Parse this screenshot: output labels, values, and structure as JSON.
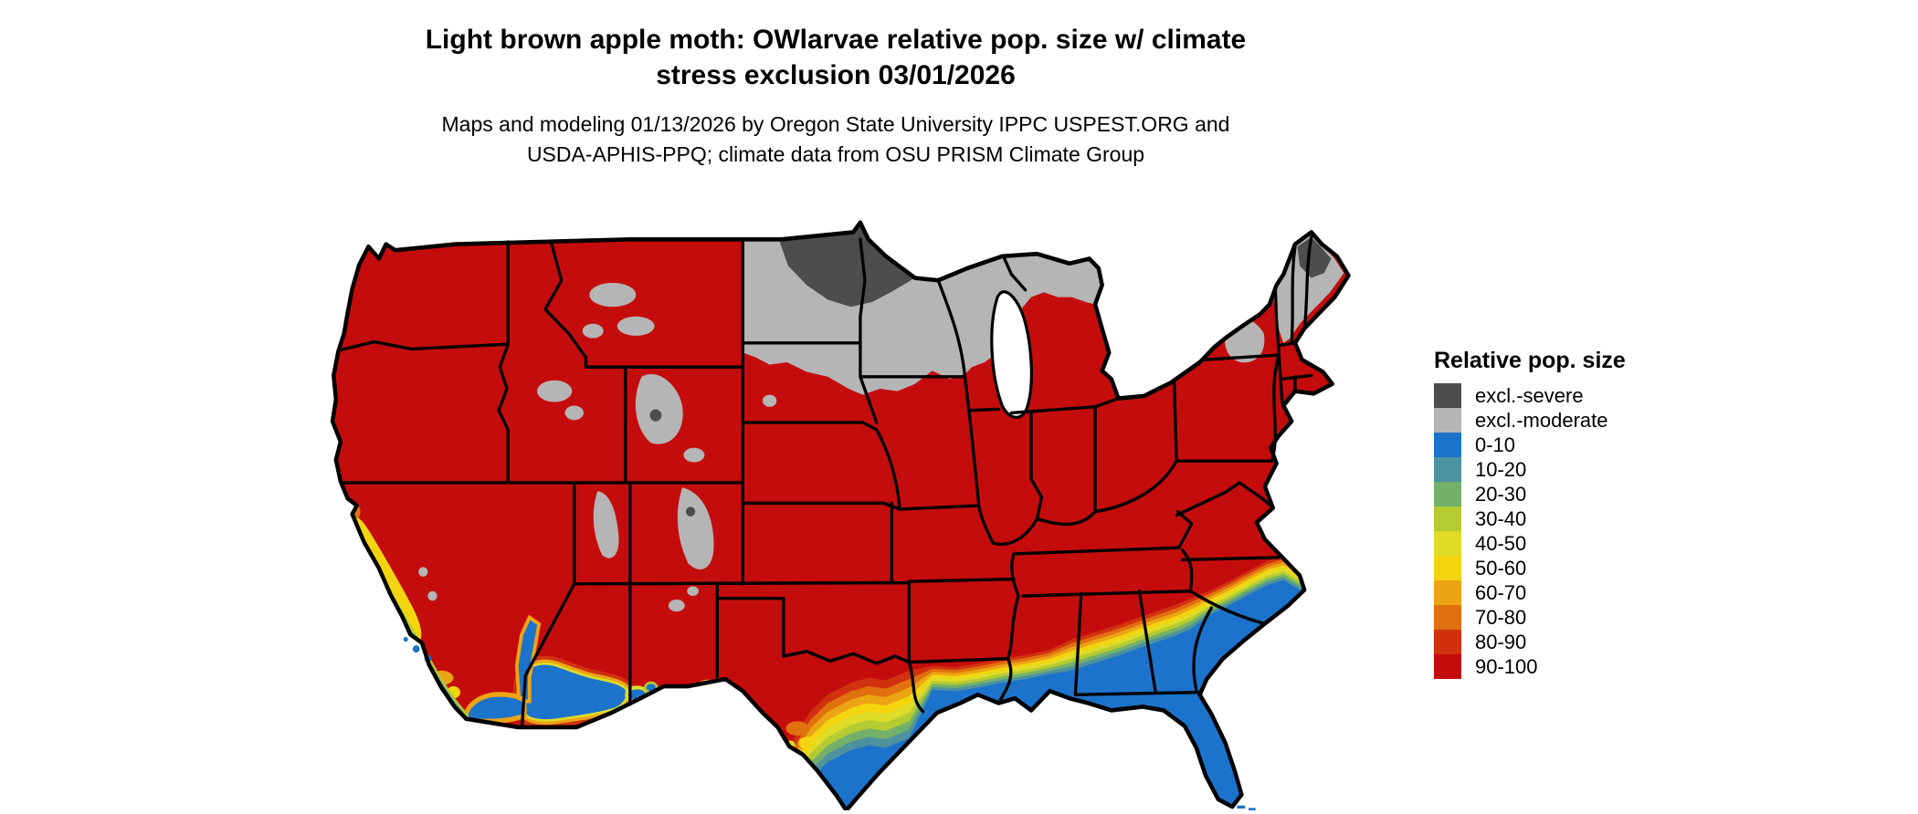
{
  "header": {
    "title_line1": "Light brown apple moth: OWlarvae relative pop. size w/ climate",
    "title_line2": "stress exclusion 03/01/2026",
    "subtitle_line1": "Maps and modeling 01/13/2026 by Oregon State University IPPC USPEST.ORG and",
    "subtitle_line2": "USDA-APHIS-PPQ; climate data from OSU PRISM Climate Group"
  },
  "map": {
    "region": "Contiguous United States",
    "background_color": "#ffffff",
    "state_border_color": "#000000",
    "base_fill_color": "#c50c0c"
  },
  "legend": {
    "title": "Relative pop. size",
    "entries": [
      {
        "label": "excl.-severe",
        "color": "#4d4d4d"
      },
      {
        "label": "excl.-moderate",
        "color": "#b5b5b5"
      },
      {
        "label": "0-10",
        "color": "#1c73cb"
      },
      {
        "label": "10-20",
        "color": "#4d929f"
      },
      {
        "label": "20-30",
        "color": "#74b069"
      },
      {
        "label": "30-40",
        "color": "#b4cb32"
      },
      {
        "label": "40-50",
        "color": "#dedc26"
      },
      {
        "label": "50-60",
        "color": "#f3d50f"
      },
      {
        "label": "60-70",
        "color": "#eda414"
      },
      {
        "label": "70-80",
        "color": "#e1700f"
      },
      {
        "label": "80-90",
        "color": "#d1310f"
      },
      {
        "label": "90-100",
        "color": "#c50c0c"
      }
    ]
  }
}
